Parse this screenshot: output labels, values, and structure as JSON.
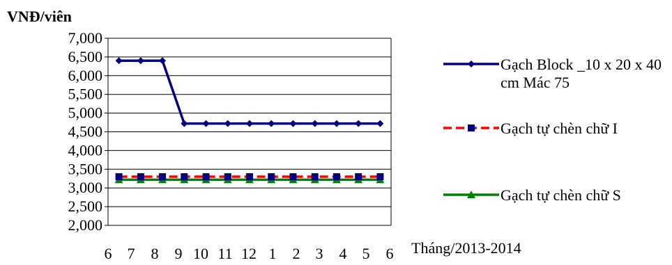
{
  "chart_data": {
    "type": "line",
    "ylabel": "VNĐ/viên",
    "xlabel": "Tháng/2013-2014",
    "categories": [
      "6",
      "7",
      "8",
      "9",
      "10",
      "11",
      "12",
      "1",
      "2",
      "3",
      "4",
      "5",
      "6"
    ],
    "ylim": [
      2000,
      7000
    ],
    "yticks": [
      "2,000",
      "2,500",
      "3,000",
      "3,500",
      "4,000",
      "4,500",
      "5,000",
      "5,500",
      "6,000",
      "6,500",
      "7,000"
    ],
    "ytick_values": [
      2000,
      2500,
      3000,
      3500,
      4000,
      4500,
      5000,
      5500,
      6000,
      6500,
      7000
    ],
    "grid": true,
    "legend_position": "right",
    "series": [
      {
        "name": "Gạch Block _10 x 20 x 40 cm  Mác 75",
        "color": "#000080",
        "marker": "diamond",
        "dash": false,
        "values": [
          6400,
          6400,
          6400,
          4720,
          4720,
          4720,
          4720,
          4720,
          4720,
          4720,
          4720,
          4720,
          4720
        ]
      },
      {
        "name": "Gạch tự chèn chữ I",
        "color": "#ff0000",
        "marker": "square",
        "marker_color": "#000080",
        "dash": true,
        "values": [
          3300,
          3300,
          3300,
          3300,
          3300,
          3300,
          3300,
          3300,
          3300,
          3300,
          3300,
          3300,
          3300
        ]
      },
      {
        "name": "Gạch tự chèn chữ S",
        "color": "#008000",
        "marker": "triangle",
        "dash": false,
        "values": [
          3220,
          3220,
          3220,
          3220,
          3220,
          3220,
          3220,
          3220,
          3220,
          3220,
          3220,
          3220,
          3220
        ]
      }
    ]
  }
}
